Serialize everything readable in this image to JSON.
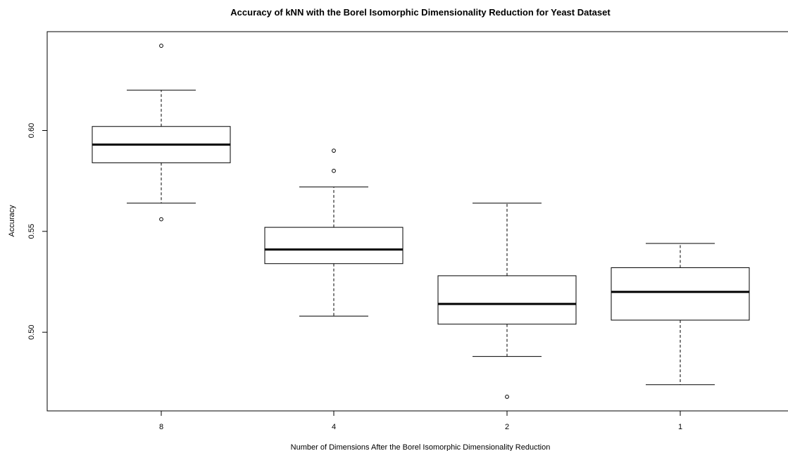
{
  "chart_data": {
    "type": "boxplot",
    "title": "Accuracy of kNN with the Borel Isomorphic Dimensionality Reduction for Yeast Dataset",
    "xlabel": "Number of Dimensions After the Borel Isomorphic Dimensionality Reduction",
    "ylabel": "Accuracy",
    "categories": [
      "8",
      "4",
      "2",
      "1"
    ],
    "yticks": [
      "0.50",
      "0.55",
      "0.60"
    ],
    "ylim": [
      0.461,
      0.649
    ],
    "grid": false,
    "boxes": [
      {
        "category": "8",
        "whisker_low": 0.564,
        "q1": 0.584,
        "median": 0.593,
        "q3": 0.602,
        "whisker_high": 0.62,
        "outliers": [
          0.642,
          0.556
        ]
      },
      {
        "category": "4",
        "whisker_low": 0.508,
        "q1": 0.534,
        "median": 0.541,
        "q3": 0.552,
        "whisker_high": 0.572,
        "outliers": [
          0.59,
          0.58
        ]
      },
      {
        "category": "2",
        "whisker_low": 0.488,
        "q1": 0.504,
        "median": 0.514,
        "q3": 0.528,
        "whisker_high": 0.564,
        "outliers": [
          0.468
        ]
      },
      {
        "category": "1",
        "whisker_low": 0.474,
        "q1": 0.506,
        "median": 0.52,
        "q3": 0.532,
        "whisker_high": 0.544,
        "outliers": []
      }
    ]
  }
}
